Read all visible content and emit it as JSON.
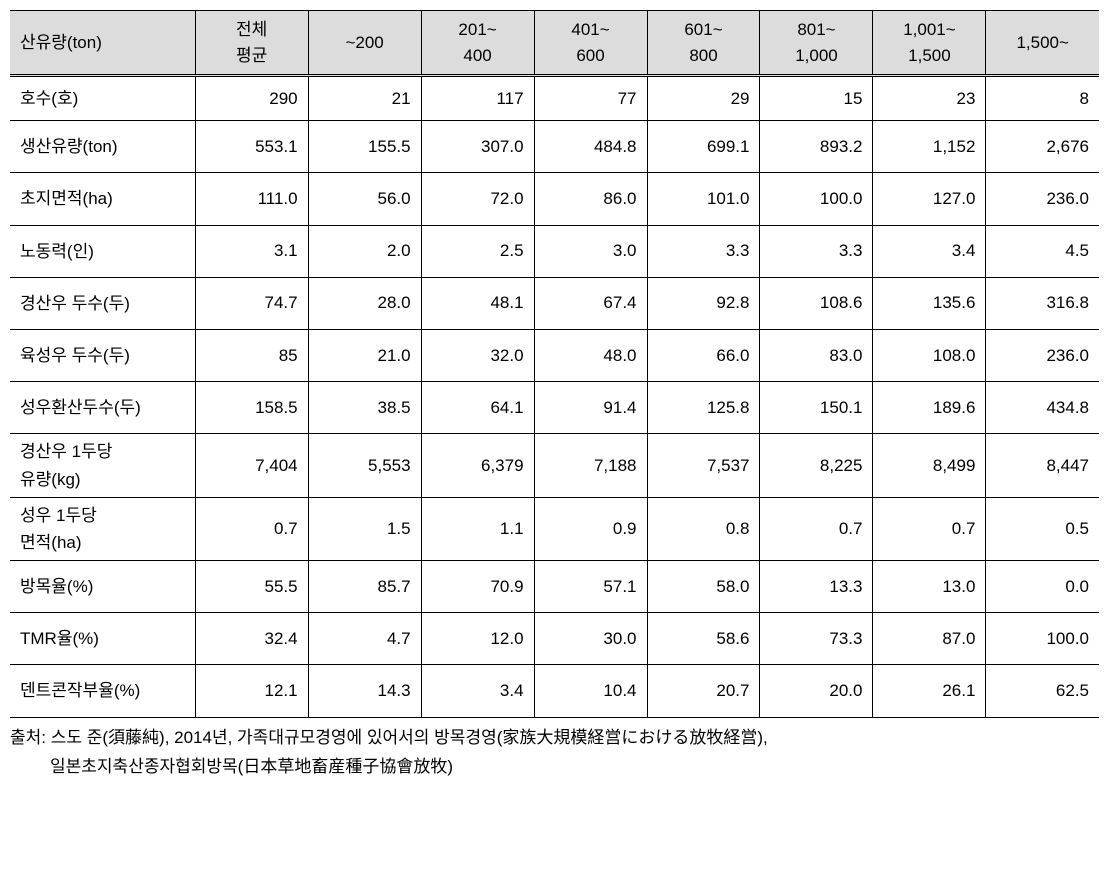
{
  "table": {
    "header_bg": "#dcdcdc",
    "border_color": "#000000",
    "columns": [
      "산유량(ton)",
      "전체\n평균",
      "~200",
      "201~\n400",
      "401~\n600",
      "601~\n800",
      "801~\n1,000",
      "1,001~\n1,500",
      "1,500~"
    ],
    "rows": [
      {
        "label": "호수(호)",
        "multi": false,
        "data": [
          "290",
          "21",
          "117",
          "77",
          "29",
          "15",
          "23",
          "8"
        ]
      },
      {
        "label": "생산유량(ton)",
        "multi": false,
        "tall": true,
        "data": [
          "553.1",
          "155.5",
          "307.0",
          "484.8",
          "699.1",
          "893.2",
          "1,152",
          "2,676"
        ]
      },
      {
        "label": "초지면적(ha)",
        "multi": false,
        "tall": true,
        "data": [
          "111.0",
          "56.0",
          "72.0",
          "86.0",
          "101.0",
          "100.0",
          "127.0",
          "236.0"
        ]
      },
      {
        "label": "노동력(인)",
        "multi": false,
        "tall": true,
        "data": [
          "3.1",
          "2.0",
          "2.5",
          "3.0",
          "3.3",
          "3.3",
          "3.4",
          "4.5"
        ]
      },
      {
        "label": "경산우 두수(두)",
        "multi": false,
        "tall": true,
        "data": [
          "74.7",
          "28.0",
          "48.1",
          "67.4",
          "92.8",
          "108.6",
          "135.6",
          "316.8"
        ]
      },
      {
        "label": "육성우 두수(두)",
        "multi": false,
        "tall": true,
        "data": [
          "85",
          "21.0",
          "32.0",
          "48.0",
          "66.0",
          "83.0",
          "108.0",
          "236.0"
        ]
      },
      {
        "label": "성우환산두수(두)",
        "multi": false,
        "tall": true,
        "data": [
          "158.5",
          "38.5",
          "64.1",
          "91.4",
          "125.8",
          "150.1",
          "189.6",
          "434.8"
        ]
      },
      {
        "label": "경산우 1두당\n유량(kg)",
        "multi": true,
        "data": [
          "7,404",
          "5,553",
          "6,379",
          "7,188",
          "7,537",
          "8,225",
          "8,499",
          "8,447"
        ]
      },
      {
        "label": "성우 1두당\n면적(ha)",
        "multi": true,
        "data": [
          "0.7",
          "1.5",
          "1.1",
          "0.9",
          "0.8",
          "0.7",
          "0.7",
          "0.5"
        ]
      },
      {
        "label": "방목율(%)",
        "multi": false,
        "tall": true,
        "data": [
          "55.5",
          "85.7",
          "70.9",
          "57.1",
          "58.0",
          "13.3",
          "13.0",
          "0.0"
        ]
      },
      {
        "label": "TMR율(%)",
        "multi": false,
        "tall": true,
        "data": [
          "32.4",
          "4.7",
          "12.0",
          "30.0",
          "58.6",
          "73.3",
          "87.0",
          "100.0"
        ]
      },
      {
        "label": "덴트콘작부율(%)",
        "multi": false,
        "tall": true,
        "data": [
          "12.1",
          "14.3",
          "3.4",
          "10.4",
          "20.7",
          "20.0",
          "26.1",
          "62.5"
        ]
      }
    ]
  },
  "source": {
    "line1": "출처:  스도  준(須藤純),  2014년,  가족대규모경영에   있어서의   방목경영(家族大規模経営における放牧経営),",
    "line2": "일본초지축산종자협회방목(日本草地畜産種子協會放牧)"
  }
}
